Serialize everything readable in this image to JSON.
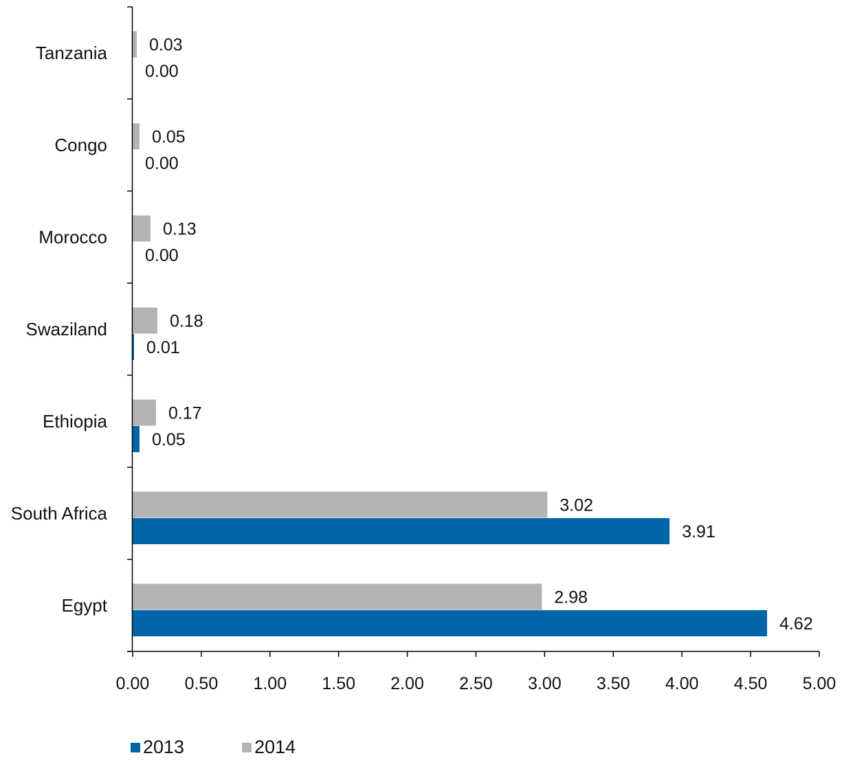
{
  "chart_data": {
    "type": "bar",
    "orientation": "horizontal",
    "categories": [
      "Egypt",
      "South Africa",
      "Ethiopia",
      "Swaziland",
      "Morocco",
      "Congo",
      "Tanzania"
    ],
    "series": [
      {
        "name": "2013",
        "color": "#0066a8",
        "values": [
          4.62,
          3.91,
          0.05,
          0.01,
          0.0,
          0.0,
          0.0
        ],
        "labels": [
          "4.62",
          "3.91",
          "0.05",
          "0.01",
          "0.00",
          "0.00",
          "0.00"
        ]
      },
      {
        "name": "2014",
        "color": "#b2b3b5",
        "values": [
          2.98,
          3.02,
          0.17,
          0.18,
          0.13,
          0.05,
          0.03
        ],
        "labels": [
          "2.98",
          "3.02",
          "0.17",
          "0.18",
          "0.13",
          "0.05",
          "0.03"
        ]
      }
    ],
    "xlim": [
      0,
      5
    ],
    "xticks": [
      "0.00",
      "0.50",
      "1.00",
      "1.50",
      "2.00",
      "2.50",
      "3.00",
      "3.50",
      "4.00",
      "4.50",
      "5.00"
    ],
    "grid": false,
    "legend_position": "bottom-left"
  },
  "legend": {
    "item_2013": "2013",
    "item_2014": "2014"
  }
}
